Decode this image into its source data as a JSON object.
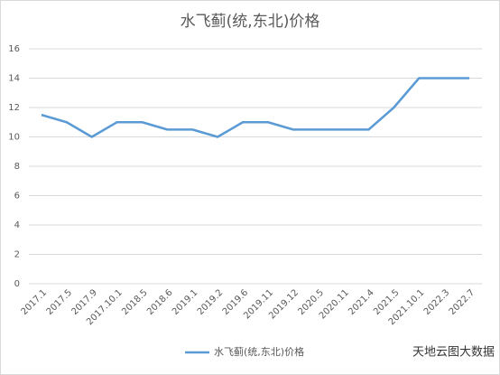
{
  "chart_data": {
    "type": "line",
    "title": "水飞蓟(统,东北)价格",
    "categories": [
      "2017.1",
      "2017.5",
      "2017.9",
      "2017.10.1",
      "2018.5",
      "2018.6",
      "2019.1",
      "2019.2",
      "2019.6",
      "2019.11",
      "2019.12",
      "2020.5",
      "2020.11",
      "2021.4",
      "2021.5",
      "2021.10.1",
      "2022.3",
      "2022.7"
    ],
    "series": [
      {
        "name": "水飞蓟(统,东北)价格",
        "color": "#5b9bd5",
        "values": [
          11.5,
          11,
          10,
          11,
          11,
          10.5,
          10.5,
          10,
          11,
          11,
          10.5,
          10.5,
          10.5,
          10.5,
          12,
          14,
          14,
          14
        ]
      }
    ],
    "ylim": [
      0,
      16
    ],
    "yticks": [
      0,
      2,
      4,
      6,
      8,
      10,
      12,
      14,
      16
    ],
    "grid": true,
    "legend": "bottom",
    "watermark": "天地云图大数据"
  }
}
